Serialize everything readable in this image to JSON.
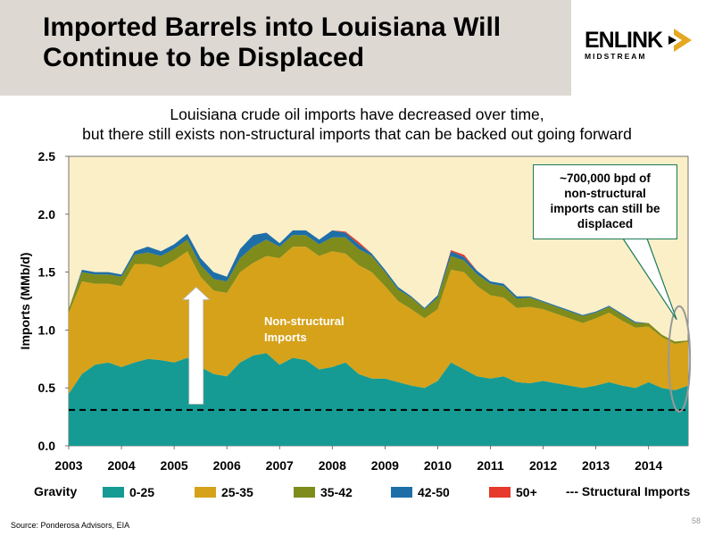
{
  "header": {
    "title_line1": "Imported Barrels into Louisiana Will",
    "title_line2": "Continue to be Displaced",
    "logo_main": "ENLINK",
    "logo_sub": "MIDSTREAM"
  },
  "subtitle": {
    "line1": "Louisiana crude oil imports have decreased over time,",
    "line2": "but there still exists non-structural imports that can be backed out going forward"
  },
  "callout": {
    "line1": "~700,000 bpd of",
    "line2": "non-structural",
    "line3": "imports can still be",
    "line4": "displaced"
  },
  "annotation": {
    "line1": "Non-structural",
    "line2": "Imports"
  },
  "legend": {
    "gravity_label": "Gravity",
    "structural_label": "--- Structural Imports"
  },
  "footer": {
    "source": "Source:  Ponderosa Advisors, EIA",
    "page": "58"
  },
  "colors": {
    "plot_bg": "#fbefc8",
    "s1": "#169b94",
    "s2": "#d6a21a",
    "s3": "#7f8b1b",
    "s4": "#1e6fa8",
    "s5": "#e53a2c",
    "callout_border": "#1a7a5a"
  },
  "chart_data": {
    "type": "area",
    "stacked": true,
    "ylabel": "Imports (MMb/d)",
    "xlabel": "",
    "ylim": [
      0,
      2.5
    ],
    "xlim": [
      "2003-01",
      "2014-10"
    ],
    "yticks": [
      "0.0",
      "0.5",
      "1.0",
      "1.5",
      "2.0",
      "2.5"
    ],
    "xticks": [
      "2003",
      "2004",
      "2005",
      "2006",
      "2007",
      "2008",
      "2009",
      "2010",
      "2011",
      "2012",
      "2013",
      "2014"
    ],
    "structural_imports": 0.31,
    "x": [
      "2003-01",
      "2003-04",
      "2003-07",
      "2003-10",
      "2004-01",
      "2004-04",
      "2004-07",
      "2004-10",
      "2005-01",
      "2005-04",
      "2005-07",
      "2005-10",
      "2006-01",
      "2006-04",
      "2006-07",
      "2006-10",
      "2007-01",
      "2007-04",
      "2007-07",
      "2007-10",
      "2008-01",
      "2008-04",
      "2008-07",
      "2008-10",
      "2009-01",
      "2009-04",
      "2009-07",
      "2009-10",
      "2010-01",
      "2010-04",
      "2010-07",
      "2010-10",
      "2011-01",
      "2011-04",
      "2011-07",
      "2011-10",
      "2012-01",
      "2012-04",
      "2012-07",
      "2012-10",
      "2013-01",
      "2013-04",
      "2013-07",
      "2013-10",
      "2014-01",
      "2014-04",
      "2014-07",
      "2014-10"
    ],
    "series": [
      {
        "name": "0-25",
        "values": [
          0.45,
          0.62,
          0.7,
          0.72,
          0.68,
          0.72,
          0.75,
          0.74,
          0.72,
          0.76,
          0.68,
          0.62,
          0.6,
          0.72,
          0.78,
          0.8,
          0.7,
          0.76,
          0.74,
          0.66,
          0.68,
          0.72,
          0.62,
          0.58,
          0.58,
          0.55,
          0.52,
          0.5,
          0.56,
          0.72,
          0.66,
          0.6,
          0.58,
          0.6,
          0.55,
          0.54,
          0.56,
          0.54,
          0.52,
          0.5,
          0.52,
          0.55,
          0.52,
          0.5,
          0.55,
          0.5,
          0.48,
          0.52
        ]
      },
      {
        "name": "25-35",
        "values": [
          0.7,
          0.8,
          0.7,
          0.68,
          0.7,
          0.85,
          0.82,
          0.8,
          0.88,
          0.92,
          0.78,
          0.72,
          0.72,
          0.78,
          0.8,
          0.84,
          0.92,
          0.96,
          0.98,
          0.98,
          1.0,
          0.94,
          0.94,
          0.92,
          0.8,
          0.7,
          0.66,
          0.6,
          0.62,
          0.8,
          0.84,
          0.78,
          0.72,
          0.68,
          0.64,
          0.66,
          0.62,
          0.6,
          0.58,
          0.56,
          0.58,
          0.6,
          0.56,
          0.52,
          0.48,
          0.44,
          0.4,
          0.38
        ]
      },
      {
        "name": "35-42",
        "values": [
          0.03,
          0.08,
          0.08,
          0.08,
          0.08,
          0.08,
          0.1,
          0.1,
          0.1,
          0.1,
          0.1,
          0.1,
          0.1,
          0.12,
          0.14,
          0.14,
          0.1,
          0.1,
          0.1,
          0.1,
          0.12,
          0.14,
          0.14,
          0.14,
          0.12,
          0.1,
          0.1,
          0.08,
          0.1,
          0.12,
          0.1,
          0.1,
          0.1,
          0.1,
          0.08,
          0.08,
          0.06,
          0.06,
          0.06,
          0.06,
          0.05,
          0.05,
          0.05,
          0.04,
          0.03,
          0.02,
          0.02,
          0.01
        ]
      },
      {
        "name": "42-50",
        "values": [
          0.0,
          0.02,
          0.02,
          0.02,
          0.02,
          0.03,
          0.05,
          0.04,
          0.04,
          0.05,
          0.06,
          0.06,
          0.04,
          0.08,
          0.1,
          0.06,
          0.03,
          0.04,
          0.04,
          0.04,
          0.06,
          0.04,
          0.04,
          0.02,
          0.02,
          0.02,
          0.01,
          0.01,
          0.02,
          0.04,
          0.03,
          0.03,
          0.02,
          0.02,
          0.02,
          0.01,
          0.01,
          0.01,
          0.01,
          0.01,
          0.01,
          0.01,
          0.01,
          0.01,
          0.0,
          0.0,
          0.0,
          0.0
        ]
      },
      {
        "name": "50+",
        "values": [
          0.0,
          0.0,
          0.0,
          0.0,
          0.0,
          0.0,
          0.0,
          0.0,
          0.0,
          0.0,
          0.0,
          0.0,
          0.0,
          0.0,
          0.0,
          0.0,
          0.0,
          0.0,
          0.0,
          0.0,
          0.0,
          0.01,
          0.02,
          0.0,
          0.0,
          0.0,
          0.0,
          0.0,
          0.0,
          0.01,
          0.02,
          0.0,
          0.0,
          0.0,
          0.0,
          0.0,
          0.0,
          0.0,
          0.0,
          0.0,
          0.0,
          0.0,
          0.0,
          0.0,
          0.0,
          0.0,
          0.0,
          0.0
        ]
      }
    ],
    "legend_position": "bottom",
    "grid": false
  }
}
